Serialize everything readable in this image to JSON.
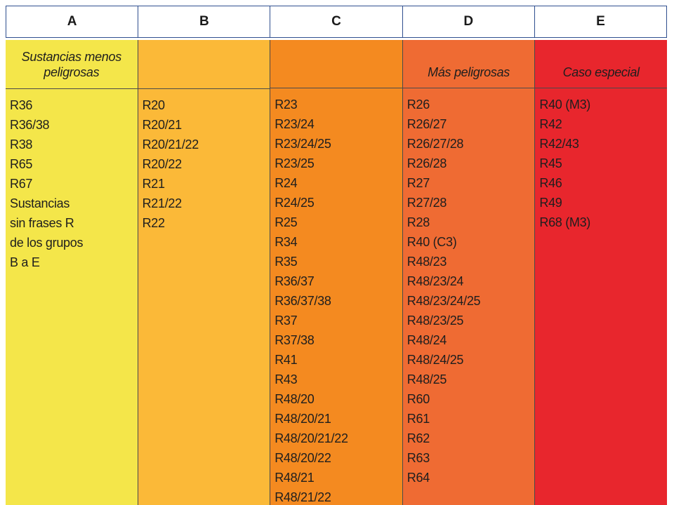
{
  "table": {
    "columns": [
      {
        "letter": "A",
        "description": "Sustancias menos\npeligrosas",
        "items": [
          "R36",
          "R36/38",
          "R38",
          "R65",
          "R67",
          "Sustancias",
          "sin frases R",
          "de los grupos",
          "B a E"
        ]
      },
      {
        "letter": "B",
        "description": "",
        "items": [
          "R20",
          "R20/21",
          "R20/21/22",
          "R20/22",
          "R21",
          "R21/22",
          "R22"
        ]
      },
      {
        "letter": "C",
        "description": "",
        "items": [
          "R23",
          "R23/24",
          "R23/24/25",
          "R23/25",
          "R24",
          "R24/25",
          "R25",
          "R34",
          "R35",
          "R36/37",
          "R36/37/38",
          "R37",
          "R37/38",
          "R41",
          "R43",
          "R48/20",
          "R48/20/21",
          "R48/20/21/22",
          "R48/20/22",
          "R48/21",
          "R48/21/22"
        ]
      },
      {
        "letter": "D",
        "description": "Más peligrosas",
        "items": [
          "R26",
          "R26/27",
          "R26/27/28",
          "R26/28",
          "R27",
          "R27/28",
          "R28",
          "R40 (C3)",
          "R48/23",
          "R48/23/24",
          "R48/23/24/25",
          "R48/23/25",
          "R48/24",
          "R48/24/25",
          "R48/25",
          "R60",
          "R61",
          "R62",
          "R63",
          "R64"
        ]
      },
      {
        "letter": "E",
        "description": "Caso especial",
        "items": [
          "R40 (M3)",
          "R42",
          "R42/43",
          "R45",
          "R46",
          "R49",
          "R68 (M3)"
        ]
      }
    ],
    "colors": {
      "A": "#f4e64a",
      "B": "#fbb938",
      "C": "#f48a20",
      "D": "#ef6b33",
      "E": "#e8262d",
      "header_border": "#2f4f8f"
    }
  }
}
